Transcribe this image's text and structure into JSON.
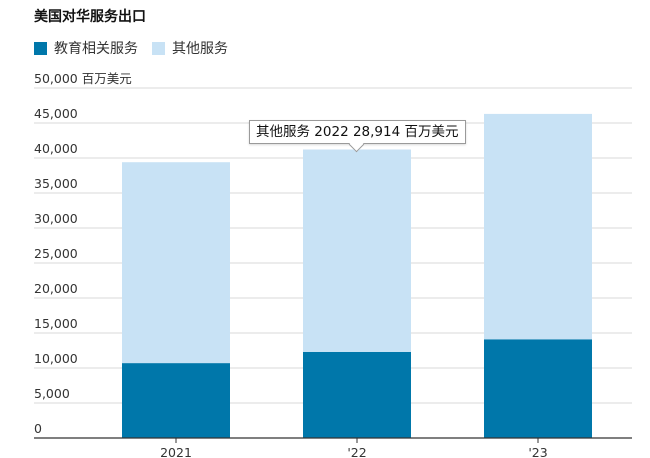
{
  "chart_data": {
    "type": "bar",
    "stacked": true,
    "title": "美国对华服务出口",
    "unit_label": "百万美元",
    "categories": [
      "2021",
      "'22",
      "'23"
    ],
    "series": [
      {
        "name": "教育相关服务",
        "color": "#0077aa",
        "values": [
          10700,
          12300,
          14100
        ]
      },
      {
        "name": "其他服务",
        "color": "#c8e2f5",
        "values": [
          28700,
          28914,
          32200
        ]
      }
    ],
    "ylim": [
      0,
      50000
    ],
    "yticks": [
      "0",
      "5,000",
      "10,000",
      "15,000",
      "20,000",
      "25,000",
      "30,000",
      "35,000",
      "40,000",
      "45,000",
      "50,000"
    ],
    "grid": true,
    "legend_position": "top-left",
    "tooltip": {
      "series": "其他服务",
      "year": "2022",
      "value": "28,914",
      "unit": "百万美元"
    }
  }
}
